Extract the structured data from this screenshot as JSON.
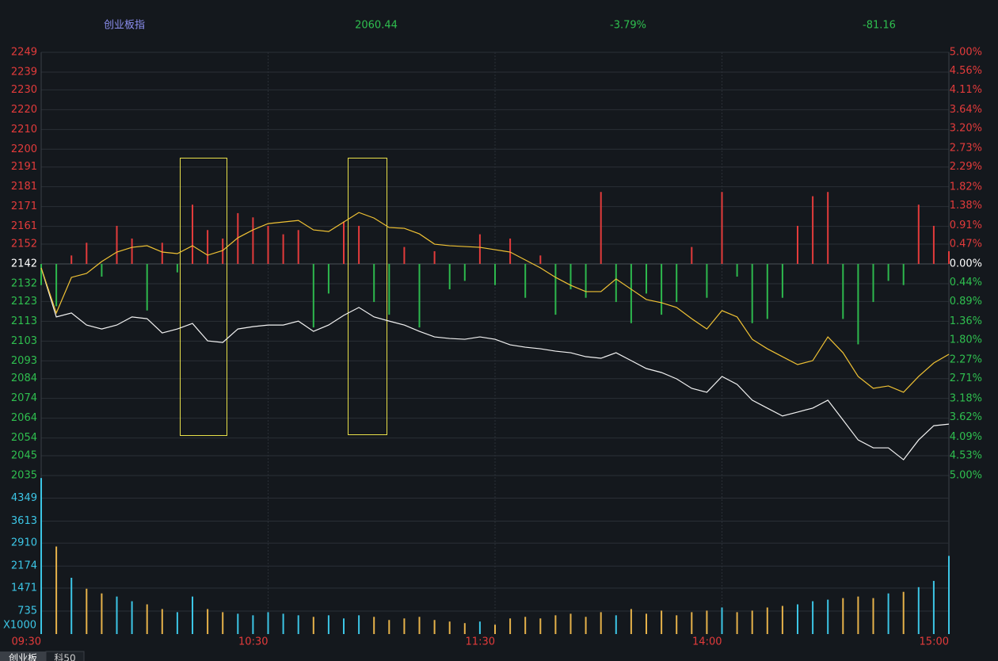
{
  "chart_data": {
    "type": "line",
    "title": "创业板指",
    "stats": [
      "2060.44",
      "-3.79%",
      "-81.16"
    ],
    "x": [
      0,
      4,
      8,
      12,
      16,
      20,
      24,
      28,
      32,
      36,
      40,
      44,
      48,
      52,
      56,
      60,
      64,
      68,
      72,
      76,
      80,
      84,
      88,
      92,
      96,
      100,
      104,
      108,
      112,
      116,
      120,
      124,
      128,
      132,
      136,
      140,
      144,
      148,
      152,
      156,
      160,
      164,
      168,
      172,
      176,
      180,
      184,
      188,
      192,
      196,
      200,
      204,
      208,
      212,
      216,
      220,
      224,
      228,
      232,
      236,
      240
    ],
    "xlim": [
      0,
      240
    ],
    "xticks": [
      {
        "value": 0,
        "label": "09:30"
      },
      {
        "value": 60,
        "label": "10:30"
      },
      {
        "value": 120,
        "label": "11:30"
      },
      {
        "value": 180,
        "label": "14:00"
      },
      {
        "value": 240,
        "label": "15:00"
      }
    ],
    "ylim": [
      2035,
      2249
    ],
    "yticks": [
      2249,
      2239,
      2230,
      2220,
      2210,
      2200,
      2191,
      2181,
      2171,
      2161,
      2152,
      2142,
      2132,
      2123,
      2113,
      2103,
      2093,
      2084,
      2074,
      2064,
      2054,
      2045,
      2035
    ],
    "y2lim": [
      -5,
      5
    ],
    "y2ticks": [
      {
        "value": 5,
        "label": "5.00%"
      },
      {
        "value": 4.56,
        "label": "4.56%"
      },
      {
        "value": 4.11,
        "label": "4.11%"
      },
      {
        "value": 3.64,
        "label": "3.64%"
      },
      {
        "value": 3.2,
        "label": "3.20%"
      },
      {
        "value": 2.73,
        "label": "2.73%"
      },
      {
        "value": 2.29,
        "label": "2.29%"
      },
      {
        "value": 1.82,
        "label": "1.82%"
      },
      {
        "value": 1.38,
        "label": "1.38%"
      },
      {
        "value": 0.91,
        "label": "0.91%"
      },
      {
        "value": 0.47,
        "label": "0.47%"
      },
      {
        "value": 0,
        "label": "0.00%"
      },
      {
        "value": -0.44,
        "label": "0.44%"
      },
      {
        "value": -0.89,
        "label": "0.89%"
      },
      {
        "value": -1.36,
        "label": "1.36%"
      },
      {
        "value": -1.8,
        "label": "1.80%"
      },
      {
        "value": -2.27,
        "label": "2.27%"
      },
      {
        "value": -2.71,
        "label": "2.71%"
      },
      {
        "value": -3.18,
        "label": "3.18%"
      },
      {
        "value": -3.62,
        "label": "3.62%"
      },
      {
        "value": -4.09,
        "label": "4.09%"
      },
      {
        "value": -4.53,
        "label": "4.53%"
      },
      {
        "value": -5,
        "label": "5.00%"
      }
    ],
    "grid": true,
    "series": [
      {
        "color": "#f2f2f2",
        "values": [
          2140.0,
          2115.2,
          2117.2,
          2111.1,
          2109.1,
          2111.1,
          2115.2,
          2114.3,
          2107.1,
          2109.1,
          2111.9,
          2103.1,
          2102.3,
          2109.1,
          2110.3,
          2111.1,
          2111.1,
          2113.1,
          2107.9,
          2111.1,
          2116.0,
          2120.0,
          2115.2,
          2113.1,
          2111.1,
          2107.9,
          2105.1,
          2104.3,
          2103.9,
          2105.1,
          2103.9,
          2101.1,
          2099.9,
          2099.1,
          2097.9,
          2097.1,
          2095.1,
          2094.3,
          2097.1,
          2093.1,
          2089.1,
          2087.1,
          2083.9,
          2079.1,
          2077.1,
          2085.1,
          2081.1,
          2073.1,
          2069.1,
          2065.1,
          2067.1,
          2069.1,
          2073.1,
          2063.1,
          2053.0,
          2049.0,
          2049.0,
          2043.0,
          2053.0,
          2060.2,
          2061.0
        ]
      },
      {
        "color": "#f0c234",
        "values": [
          2140.0,
          2117.2,
          2135.2,
          2137.2,
          2143.2,
          2148.0,
          2150.4,
          2151.2,
          2148.0,
          2147.2,
          2151.2,
          2146.4,
          2148.8,
          2155.2,
          2159.2,
          2162.4,
          2163.2,
          2164.0,
          2159.2,
          2158.4,
          2163.2,
          2168.0,
          2165.2,
          2160.4,
          2160.0,
          2157.2,
          2152.0,
          2151.2,
          2150.8,
          2150.4,
          2149.2,
          2148.0,
          2144.0,
          2140.0,
          2135.2,
          2131.2,
          2128.0,
          2128.0,
          2134.4,
          2129.2,
          2124.0,
          2122.4,
          2120.0,
          2114.3,
          2109.1,
          2118.4,
          2115.2,
          2103.9,
          2099.1,
          2095.1,
          2091.1,
          2093.1,
          2105.1,
          2097.1,
          2085.1,
          2079.1,
          2080.3,
          2077.1,
          2085.1,
          2091.9,
          2096.3
        ]
      },
      {
        "type": "bar",
        "axis": "y2",
        "color": "#e33b3b",
        "negative_color": "#2db84d",
        "values": [
          -0.5,
          -1.0,
          0.2,
          0.5,
          -0.3,
          0.9,
          0.6,
          -1.1,
          0.5,
          -0.2,
          1.4,
          0.8,
          0.6,
          1.2,
          1.1,
          0.9,
          0.7,
          0.8,
          -1.5,
          -0.7,
          1.0,
          0.9,
          -0.9,
          -1.2,
          0.4,
          -1.5,
          0.3,
          -0.6,
          -0.4,
          0.7,
          -0.5,
          0.6,
          -0.8,
          0.2,
          -1.2,
          -0.6,
          -0.8,
          1.7,
          -0.9,
          -1.4,
          -0.7,
          -1.2,
          -0.9,
          0.4,
          -0.8,
          1.7,
          -0.3,
          -1.4,
          -1.3,
          -0.8,
          0.9,
          1.6,
          1.7,
          -1.3,
          -1.9,
          -0.9,
          -0.4,
          -0.5,
          1.4,
          0.9,
          0.3
        ]
      }
    ],
    "volume": {
      "type": "bar",
      "unit": "X1000",
      "ylim": [
        0,
        5070
      ],
      "yticks": [
        735,
        1471,
        2174,
        2910,
        3613,
        4349
      ],
      "color": "#3cc6e6",
      "down_color": "#e6b24a",
      "values": [
        4990,
        2800,
        1800,
        1450,
        1300,
        1200,
        1050,
        950,
        800,
        700,
        1200,
        800,
        700,
        650,
        600,
        700,
        650,
        600,
        550,
        600,
        500,
        600,
        550,
        450,
        500,
        550,
        450,
        400,
        350,
        400,
        300,
        500,
        550,
        500,
        600,
        650,
        550,
        700,
        600,
        800,
        650,
        750,
        600,
        700,
        750,
        850,
        700,
        750,
        850,
        900,
        950,
        1050,
        1100,
        1150,
        1200,
        1150,
        1300,
        1350,
        1500,
        1700,
        2500
      ]
    }
  },
  "tabs": [
    "创业板",
    "科50"
  ]
}
